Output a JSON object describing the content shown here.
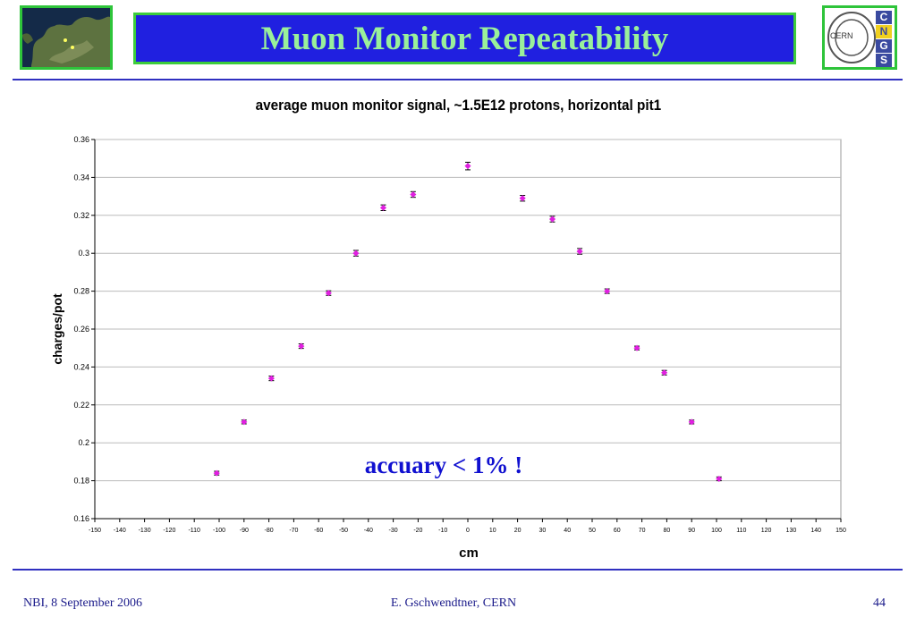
{
  "slide": {
    "title": "Muon Monitor Repeatability",
    "logo_text": "CERN",
    "cngs_letters": [
      "C",
      "N",
      "G",
      "S"
    ],
    "annotation": "accuary < 1% !",
    "footer_left": "NBI, 8 September 2006",
    "footer_center": "E. Gschwendtner, CERN",
    "page_number": "44",
    "accent_color": "#2020e0",
    "title_color": "#9af09a"
  },
  "chart_data": {
    "type": "scatter",
    "title": "average muon monitor signal, ~1.5E12 protons, horizontal pit1",
    "xlabel": "cm",
    "ylabel": "charges/pot",
    "xlim": [
      -150,
      150
    ],
    "ylim": [
      0.16,
      0.36
    ],
    "xticks": [
      -150,
      -140,
      -130,
      -120,
      -110,
      -100,
      -90,
      -80,
      -70,
      -60,
      -50,
      -40,
      -30,
      -20,
      -10,
      0,
      10,
      20,
      30,
      40,
      50,
      60,
      70,
      80,
      90,
      100,
      110,
      120,
      130,
      140,
      150
    ],
    "yticks": [
      "0.16",
      "0.18",
      "0.2",
      "0.22",
      "0.24",
      "0.26",
      "0.28",
      "0.3",
      "0.32",
      "0.34",
      "0.36"
    ],
    "grid": "horizontal",
    "marker_color": "#e020e0",
    "error_bars": true,
    "points": [
      {
        "x": -101,
        "y": 0.184,
        "err": 0.001
      },
      {
        "x": -90,
        "y": 0.211,
        "err": 0.001
      },
      {
        "x": -79,
        "y": 0.234,
        "err": 0.0012
      },
      {
        "x": -67,
        "y": 0.251,
        "err": 0.0012
      },
      {
        "x": -56,
        "y": 0.279,
        "err": 0.0012
      },
      {
        "x": -45,
        "y": 0.3,
        "err": 0.0015
      },
      {
        "x": -34,
        "y": 0.324,
        "err": 0.0015
      },
      {
        "x": -22,
        "y": 0.331,
        "err": 0.0015
      },
      {
        "x": 0,
        "y": 0.346,
        "err": 0.002
      },
      {
        "x": 22,
        "y": 0.329,
        "err": 0.0015
      },
      {
        "x": 34,
        "y": 0.318,
        "err": 0.0015
      },
      {
        "x": 45,
        "y": 0.301,
        "err": 0.0015
      },
      {
        "x": 56,
        "y": 0.28,
        "err": 0.0012
      },
      {
        "x": 68,
        "y": 0.25,
        "err": 0.001
      },
      {
        "x": 79,
        "y": 0.237,
        "err": 0.0012
      },
      {
        "x": 90,
        "y": 0.211,
        "err": 0.001
      },
      {
        "x": 101,
        "y": 0.181,
        "err": 0.001
      }
    ]
  }
}
